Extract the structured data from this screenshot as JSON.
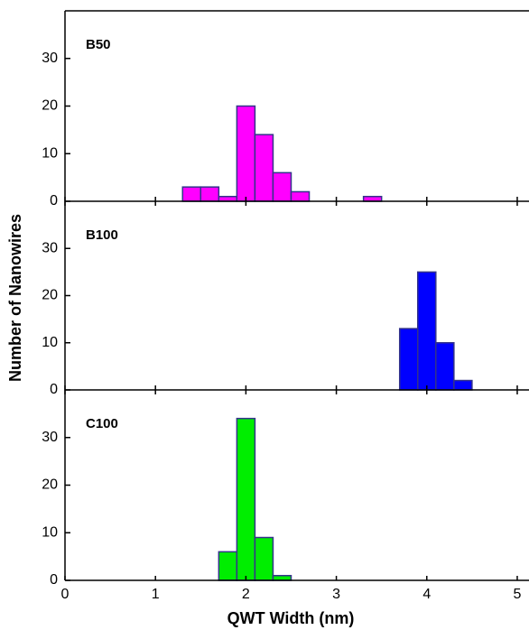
{
  "chart_data": [
    {
      "type": "histogram",
      "label": "B50",
      "color": "#ff00ff",
      "edgecolor": "#33338a",
      "bins": [
        0.9,
        1.1,
        1.3,
        1.5,
        1.7,
        1.9,
        2.1,
        2.3,
        2.5,
        2.7,
        2.9,
        3.1,
        3.3,
        3.5,
        3.7,
        3.9,
        4.1,
        4.3,
        4.5,
        4.7,
        4.9,
        5.1
      ],
      "counts": [
        0,
        0,
        3,
        3,
        1,
        20,
        14,
        6,
        2,
        0,
        0,
        0,
        1,
        0,
        0,
        0,
        0,
        0,
        0,
        0,
        0
      ],
      "xlim": [
        0,
        5.13
      ],
      "ylim": [
        0,
        40
      ],
      "yticks": [
        0,
        10,
        20,
        30
      ]
    },
    {
      "type": "histogram",
      "label": "B100",
      "color": "#0000ff",
      "edgecolor": "#33338a",
      "ylabel": "Number of Nanowires",
      "bins": [
        0.9,
        1.1,
        1.3,
        1.5,
        1.7,
        1.9,
        2.1,
        2.3,
        2.5,
        2.7,
        2.9,
        3.1,
        3.3,
        3.5,
        3.7,
        3.9,
        4.1,
        4.3,
        4.5,
        4.7,
        4.9,
        5.1
      ],
      "counts": [
        0,
        0,
        0,
        0,
        0,
        0,
        0,
        0,
        0,
        0,
        0,
        0,
        0,
        0,
        13,
        25,
        10,
        2,
        0,
        0,
        0
      ],
      "xlim": [
        0,
        5.13
      ],
      "ylim": [
        0,
        40
      ],
      "yticks": [
        0,
        10,
        20,
        30
      ]
    },
    {
      "type": "histogram",
      "label": "C100",
      "color": "#00ee00",
      "edgecolor": "#33338a",
      "xlabel": "QWT Width (nm)",
      "bins": [
        0.9,
        1.1,
        1.3,
        1.5,
        1.7,
        1.9,
        2.1,
        2.3,
        2.5,
        2.7,
        2.9,
        3.1,
        3.3,
        3.5,
        3.7,
        3.9,
        4.1,
        4.3,
        4.5,
        4.7,
        4.9,
        5.1
      ],
      "counts": [
        0,
        0,
        0,
        0,
        6,
        34,
        9,
        1,
        0,
        0,
        0,
        0,
        0,
        0,
        0,
        0,
        0,
        0,
        0,
        0,
        0
      ],
      "xlim": [
        0,
        5.13
      ],
      "ylim": [
        0,
        40
      ],
      "yticks": [
        0,
        10,
        20,
        30
      ],
      "xticks": [
        0,
        1,
        2,
        3,
        4,
        5
      ]
    }
  ]
}
